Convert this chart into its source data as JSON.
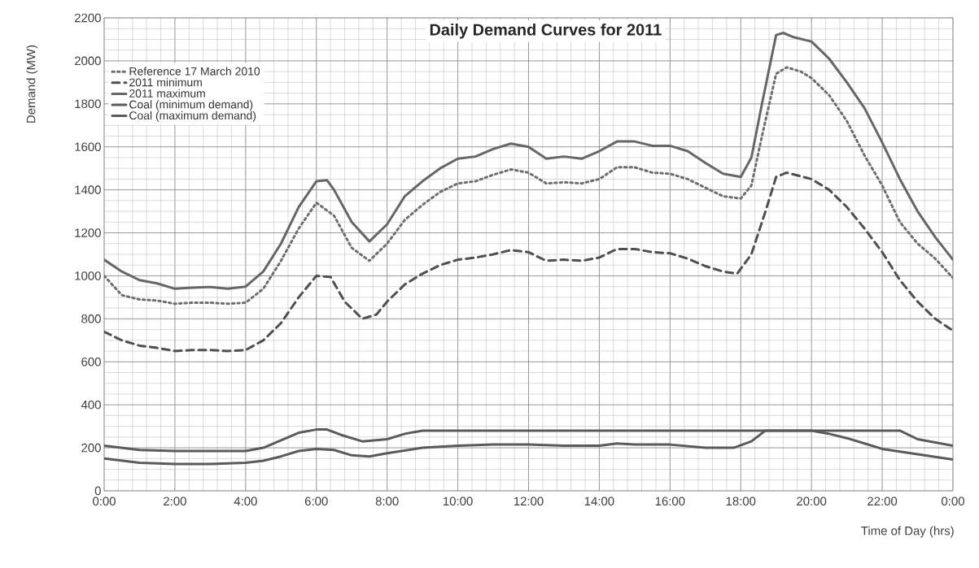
{
  "chart_data": {
    "type": "line",
    "title": "Daily Demand Curves for 2011",
    "xlabel": "Time of Day (hrs)",
    "ylabel": "Demand (MW)",
    "xlim": [
      0,
      24
    ],
    "ylim": [
      0,
      2200
    ],
    "xticks": [
      {
        "value": 0,
        "label": "0:00"
      },
      {
        "value": 2,
        "label": "2:00"
      },
      {
        "value": 4,
        "label": "4:00"
      },
      {
        "value": 6,
        "label": "6:00"
      },
      {
        "value": 8,
        "label": "8:00"
      },
      {
        "value": 10,
        "label": "10:00"
      },
      {
        "value": 12,
        "label": "12:00"
      },
      {
        "value": 14,
        "label": "14:00"
      },
      {
        "value": 16,
        "label": "16:00"
      },
      {
        "value": 18,
        "label": "18:00"
      },
      {
        "value": 20,
        "label": "20:00"
      },
      {
        "value": 22,
        "label": "22:00"
      },
      {
        "value": 24,
        "label": "0:00"
      }
    ],
    "yticks": [
      0,
      200,
      400,
      600,
      800,
      1000,
      1200,
      1400,
      1600,
      1800,
      2000,
      2200
    ],
    "grid": true,
    "legend": "top left",
    "marker": "none",
    "series": [
      {
        "name": "Reference 17 March 2010",
        "color": "#6e6e6e",
        "line_style": "dotted",
        "x": [
          0,
          0.5,
          1,
          1.5,
          2,
          2.5,
          3,
          3.5,
          4,
          4.5,
          5,
          5.5,
          6,
          6.5,
          7,
          7.5,
          8,
          8.5,
          9,
          9.5,
          10,
          10.5,
          11,
          11.5,
          12,
          12.5,
          13,
          13.5,
          14,
          14.5,
          15,
          15.5,
          16,
          16.5,
          17,
          17.5,
          18,
          18.3,
          18.6,
          19,
          19.3,
          19.7,
          20,
          20.5,
          21,
          21.5,
          22,
          22.5,
          23,
          23.5,
          24
        ],
        "values": [
          1000,
          910,
          890,
          885,
          870,
          875,
          875,
          870,
          875,
          940,
          1070,
          1220,
          1340,
          1280,
          1130,
          1070,
          1150,
          1260,
          1330,
          1390,
          1430,
          1440,
          1470,
          1495,
          1480,
          1430,
          1435,
          1430,
          1450,
          1505,
          1505,
          1480,
          1475,
          1450,
          1410,
          1370,
          1360,
          1420,
          1650,
          1940,
          1970,
          1950,
          1920,
          1840,
          1720,
          1560,
          1420,
          1250,
          1150,
          1080,
          990
        ]
      },
      {
        "name": "2011 minimum",
        "color": "#4f4f4f",
        "line_style": "dashed",
        "x": [
          0,
          0.5,
          1,
          1.5,
          2,
          2.5,
          3,
          3.5,
          4,
          4.5,
          5,
          5.5,
          6,
          6.4,
          6.8,
          7.3,
          7.7,
          8,
          8.5,
          9,
          9.5,
          10,
          10.5,
          11,
          11.5,
          12,
          12.5,
          13,
          13.5,
          14,
          14.5,
          15,
          15.5,
          16,
          16.5,
          17,
          17.5,
          17.9,
          18.3,
          18.7,
          19,
          19.3,
          20,
          20.5,
          21,
          21.5,
          22,
          22.5,
          23,
          23.5,
          24
        ],
        "values": [
          740,
          700,
          675,
          665,
          650,
          655,
          655,
          650,
          655,
          700,
          780,
          900,
          1000,
          995,
          880,
          800,
          820,
          880,
          960,
          1010,
          1050,
          1075,
          1085,
          1100,
          1120,
          1110,
          1070,
          1075,
          1070,
          1085,
          1125,
          1125,
          1110,
          1105,
          1080,
          1045,
          1020,
          1010,
          1100,
          1300,
          1460,
          1480,
          1450,
          1400,
          1320,
          1220,
          1110,
          980,
          880,
          800,
          745
        ]
      },
      {
        "name": "2011 maximum",
        "color": "#666666",
        "line_style": "solid",
        "x": [
          0,
          0.5,
          1,
          1.5,
          2,
          2.5,
          3,
          3.5,
          4,
          4.5,
          5,
          5.5,
          6,
          6.3,
          6.5,
          7,
          7.5,
          8,
          8.5,
          9,
          9.5,
          10,
          10.5,
          11,
          11.5,
          12,
          12.5,
          13,
          13.5,
          14,
          14.5,
          15,
          15.5,
          16,
          16.5,
          17,
          17.5,
          18,
          18.3,
          18.6,
          19,
          19.2,
          19.5,
          20,
          20.5,
          21,
          21.5,
          22,
          22.5,
          23,
          23.5,
          24
        ],
        "values": [
          1075,
          1020,
          980,
          965,
          940,
          945,
          948,
          940,
          950,
          1020,
          1150,
          1320,
          1440,
          1445,
          1400,
          1250,
          1160,
          1240,
          1370,
          1440,
          1500,
          1545,
          1555,
          1590,
          1615,
          1600,
          1545,
          1555,
          1545,
          1580,
          1625,
          1625,
          1605,
          1605,
          1580,
          1525,
          1475,
          1460,
          1550,
          1800,
          2120,
          2130,
          2110,
          2090,
          2010,
          1900,
          1780,
          1620,
          1450,
          1300,
          1180,
          1075
        ]
      },
      {
        "name": "Coal (minimum  demand)",
        "color": "#5a5a5a",
        "line_style": "solid",
        "x": [
          0,
          1,
          2,
          3,
          4,
          4.5,
          5,
          5.5,
          6,
          6.5,
          7,
          7.5,
          8,
          9,
          10,
          11,
          12,
          13,
          14,
          14.5,
          15,
          16,
          17,
          17.8,
          18.3,
          18.7,
          20,
          20.5,
          21,
          21.5,
          22,
          23,
          24
        ],
        "values": [
          150,
          130,
          125,
          125,
          130,
          140,
          160,
          185,
          195,
          190,
          165,
          160,
          175,
          200,
          210,
          215,
          215,
          210,
          210,
          220,
          215,
          215,
          200,
          200,
          230,
          280,
          280,
          265,
          245,
          220,
          195,
          170,
          145
        ]
      },
      {
        "name": "Coal (maximum  demand)",
        "color": "#5a5a5a",
        "line_style": "solid",
        "x": [
          0,
          1,
          2,
          3,
          4,
          4.5,
          5,
          5.5,
          6,
          6.3,
          6.7,
          7.3,
          8,
          8.5,
          9,
          10,
          12,
          14,
          16,
          18,
          20,
          22,
          22.5,
          23,
          23.5,
          24
        ],
        "values": [
          210,
          190,
          185,
          185,
          185,
          200,
          235,
          270,
          285,
          285,
          260,
          230,
          240,
          265,
          280,
          280,
          280,
          280,
          280,
          280,
          280,
          280,
          280,
          240,
          225,
          210
        ]
      }
    ]
  }
}
